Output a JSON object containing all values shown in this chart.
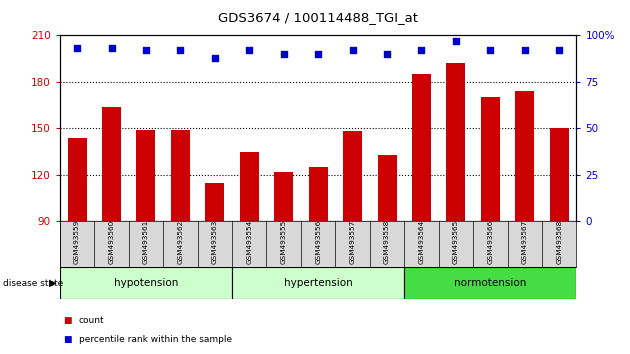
{
  "title": "GDS3674 / 100114488_TGI_at",
  "samples": [
    "GSM493559",
    "GSM493560",
    "GSM493561",
    "GSM493562",
    "GSM493563",
    "GSM493554",
    "GSM493555",
    "GSM493556",
    "GSM493557",
    "GSM493558",
    "GSM493564",
    "GSM493565",
    "GSM493566",
    "GSM493567",
    "GSM493568"
  ],
  "counts": [
    144,
    164,
    149,
    149,
    115,
    135,
    122,
    125,
    148,
    133,
    185,
    192,
    170,
    174,
    150
  ],
  "percentiles": [
    93,
    93,
    92,
    92,
    88,
    92,
    90,
    90,
    92,
    90,
    92,
    97,
    92,
    92,
    92
  ],
  "groups": [
    {
      "name": "hypotension",
      "start": 0,
      "end": 5,
      "color": "#ccffcc"
    },
    {
      "name": "hypertension",
      "start": 5,
      "end": 10,
      "color": "#ccffcc"
    },
    {
      "name": "normotension",
      "start": 10,
      "end": 15,
      "color": "#44dd44"
    }
  ],
  "ylim_left": [
    90,
    210
  ],
  "ylim_right": [
    0,
    100
  ],
  "yticks_left": [
    90,
    120,
    150,
    180,
    210
  ],
  "yticks_right": [
    0,
    25,
    50,
    75,
    100
  ],
  "bar_color": "#cc0000",
  "dot_color": "#0000cc",
  "plot_bg": "#ffffff",
  "label_bg": "#d8d8d8",
  "grid_color": "#000000"
}
